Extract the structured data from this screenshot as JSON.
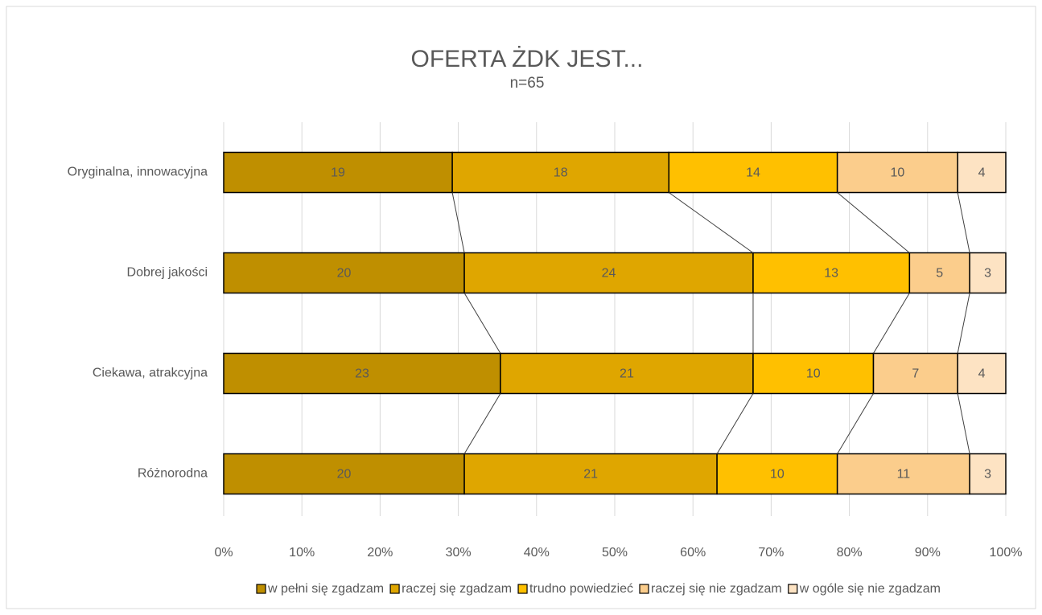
{
  "chart_data": {
    "type": "stacked-bar-horizontal",
    "stack": "percent",
    "title": "OFERTA ŻDK JEST...",
    "subtitle": "n=65",
    "categories": [
      "Oryginalna, innowacyjna",
      "Dobrej jakości",
      "Ciekawa, atrakcyjna",
      "Różnorodna"
    ],
    "series": [
      {
        "name": "w pełni się zgadzam",
        "color": "#bf8f00",
        "values": [
          19,
          20,
          23,
          20
        ]
      },
      {
        "name": "raczej się zgadzam",
        "color": "#dfa600",
        "values": [
          18,
          24,
          21,
          21
        ]
      },
      {
        "name": "trudno powiedzieć",
        "color": "#ffc000",
        "values": [
          14,
          13,
          10,
          10
        ]
      },
      {
        "name": "raczej się nie zgadzam",
        "color": "#fbcd8c",
        "values": [
          10,
          5,
          7,
          11
        ]
      },
      {
        "name": "w ogóle się nie zgadzam",
        "color": "#fde3c3",
        "values": [
          4,
          3,
          4,
          3
        ]
      }
    ],
    "xlim": [
      0,
      100
    ],
    "xticks": [
      {
        "value": 0,
        "label": "0%"
      },
      {
        "value": 10,
        "label": "10%"
      },
      {
        "value": 20,
        "label": "20%"
      },
      {
        "value": 30,
        "label": "30%"
      },
      {
        "value": 40,
        "label": "40%"
      },
      {
        "value": 50,
        "label": "50%"
      },
      {
        "value": 60,
        "label": "60%"
      },
      {
        "value": 70,
        "label": "70%"
      },
      {
        "value": 80,
        "label": "80%"
      },
      {
        "value": 90,
        "label": "90%"
      },
      {
        "value": 100,
        "label": "100%"
      }
    ],
    "grid": true,
    "series_lines": true,
    "legend": "bottom"
  }
}
